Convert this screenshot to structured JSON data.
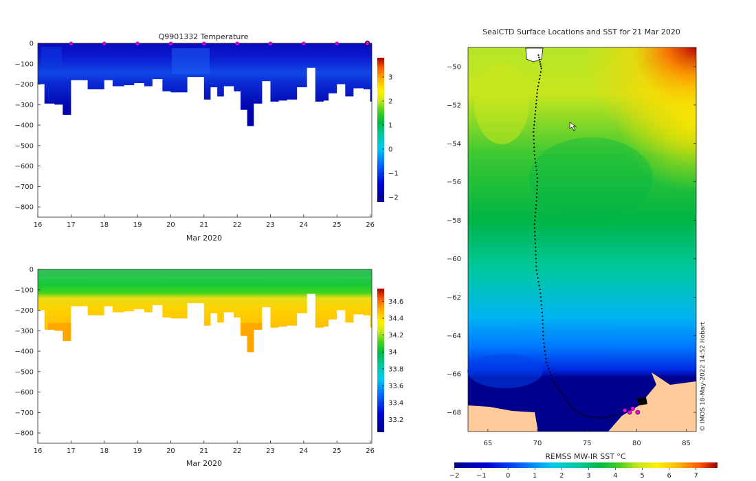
{
  "chart_data": [
    {
      "type": "heatmap",
      "id": "temperature",
      "title": "Q9901332  Temperature",
      "xlabel": "Mar 2020",
      "ylabel": "",
      "x_ticks": [
        16,
        17,
        18,
        19,
        20,
        21,
        22,
        23,
        24,
        25,
        26
      ],
      "y_ticks": [
        0,
        -100,
        -200,
        -300,
        -400,
        -500,
        -600,
        -700,
        -800
      ],
      "xlim": [
        16,
        26.05
      ],
      "ylim": [
        -850,
        0
      ],
      "colorbar": {
        "ticks": [
          -2,
          -1,
          0,
          1,
          2,
          3
        ],
        "range": [
          -2.2,
          3.8
        ]
      },
      "surface_markers_day": [
        17,
        18,
        19,
        20,
        21,
        22,
        23,
        24,
        25,
        26
      ],
      "value_summary": {
        "surface": -1.9,
        "subsurface_max": -1.0,
        "deep": -1.8
      },
      "profiles": {
        "start_day": [
          16,
          16.2,
          16.5,
          16.75,
          17.0,
          17.5,
          18.0,
          18.25,
          18.6,
          18.9,
          19.2,
          19.45,
          19.75,
          20.0,
          20.5,
          21.0,
          21.2,
          21.4,
          21.6,
          21.9,
          22.1,
          22.3,
          22.5,
          22.75,
          23.0,
          23.25,
          23.5,
          23.8,
          24.1,
          24.35,
          24.6,
          24.75,
          25.0,
          25.25,
          25.5,
          25.8,
          26.0
        ],
        "max_depth": [
          200,
          295,
          300,
          350,
          180,
          225,
          180,
          210,
          205,
          195,
          210,
          175,
          235,
          240,
          165,
          275,
          215,
          260,
          210,
          235,
          325,
          405,
          295,
          185,
          285,
          280,
          275,
          215,
          120,
          285,
          280,
          245,
          200,
          260,
          220,
          225,
          285
        ]
      }
    },
    {
      "type": "heatmap",
      "id": "salinity",
      "title": "",
      "xlabel": "Mar 2020",
      "x_ticks": [
        16,
        17,
        18,
        19,
        20,
        21,
        22,
        23,
        24,
        25,
        26
      ],
      "y_ticks": [
        0,
        -100,
        -200,
        -300,
        -400,
        -500,
        -600,
        -700,
        -800
      ],
      "xlim": [
        16,
        26.05
      ],
      "ylim": [
        -850,
        0
      ],
      "colorbar": {
        "ticks": [
          33.2,
          33.4,
          33.6,
          33.8,
          34,
          34.2,
          34.4,
          34.6
        ],
        "labels": [
          "33.2",
          "33.4",
          "33.6",
          "33.8",
          "34",
          "34.2",
          "34.4",
          "34.6"
        ],
        "range": [
          33.05,
          34.75
        ]
      },
      "value_summary": {
        "surface": 33.85,
        "mid": 34.35,
        "deep": 34.55
      }
    },
    {
      "type": "heatmap",
      "id": "sst_map",
      "title": "SealCTD Surface Locations and SST for 21 Mar 2020",
      "x_ticks": [
        65,
        70,
        75,
        80,
        85
      ],
      "y_ticks": [
        -50,
        -52,
        -54,
        -56,
        -58,
        -60,
        -62,
        -64,
        -66,
        -68
      ],
      "xlim": [
        63,
        86
      ],
      "ylim": [
        -69,
        -49
      ],
      "colorbar_label": "REMSS MW-IR SST °C",
      "colorbar": {
        "ticks": [
          -2,
          -1,
          0,
          1,
          2,
          3,
          4,
          5,
          6,
          7
        ],
        "range": [
          -2,
          7.8
        ]
      },
      "track": [
        [
          70.1,
          -49.4
        ],
        [
          70.4,
          -50.1
        ],
        [
          70.0,
          -51.2
        ],
        [
          69.8,
          -52.3
        ],
        [
          69.6,
          -53.4
        ],
        [
          69.7,
          -54.6
        ],
        [
          70.0,
          -55.8
        ],
        [
          69.9,
          -57.0
        ],
        [
          69.7,
          -58.2
        ],
        [
          69.8,
          -59.4
        ],
        [
          69.9,
          -60.6
        ],
        [
          70.3,
          -61.8
        ],
        [
          70.5,
          -63.0
        ],
        [
          70.6,
          -64.2
        ],
        [
          70.9,
          -65.4
        ],
        [
          71.6,
          -66.4
        ],
        [
          72.6,
          -67.1
        ],
        [
          73.5,
          -67.8
        ],
        [
          74.8,
          -68.2
        ],
        [
          76.5,
          -68.3
        ],
        [
          78.3,
          -68.1
        ]
      ],
      "seal_locations": [
        [
          78.8,
          -67.9
        ],
        [
          79.3,
          -68.0
        ],
        [
          80.1,
          -68.0
        ],
        [
          79.6,
          -67.8
        ]
      ],
      "credit": "© IMOS 18-May-2022 14:52 Hobart"
    }
  ]
}
